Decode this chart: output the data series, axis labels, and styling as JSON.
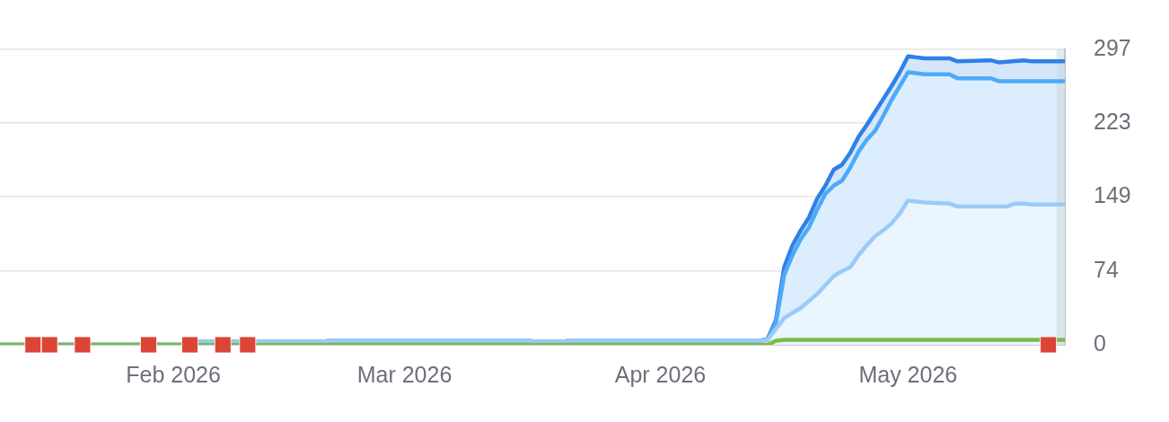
{
  "chart_data": {
    "type": "area",
    "series": [
      {
        "color": "#2f80e8",
        "x": [
          "2026-01-11",
          "2026-02-03",
          "2026-02-04",
          "2026-02-19",
          "2026-02-20",
          "2026-03-16",
          "2026-03-17",
          "2026-03-20",
          "2026-03-21",
          "2026-04-13",
          "2026-04-14",
          "2026-04-15",
          "2026-04-16",
          "2026-04-17",
          "2026-04-18",
          "2026-04-19",
          "2026-04-20",
          "2026-04-21",
          "2026-04-22",
          "2026-04-23",
          "2026-04-24",
          "2026-04-25",
          "2026-04-26",
          "2026-04-27",
          "2026-04-28",
          "2026-04-29",
          "2026-04-30",
          "2026-05-01",
          "2026-05-02",
          "2026-05-03",
          "2026-05-06",
          "2026-05-07",
          "2026-05-11",
          "2026-05-12",
          "2026-05-15",
          "2026-05-16",
          "2026-05-20"
        ],
        "values": [
          0,
          0,
          3,
          3,
          4,
          4,
          3,
          3,
          4,
          4,
          6,
          25,
          78,
          100,
          115,
          128,
          147,
          160,
          176,
          181,
          193,
          209,
          221,
          234,
          247,
          260,
          274,
          290,
          289,
          288,
          288,
          285,
          286,
          284,
          286,
          285,
          285
        ]
      },
      {
        "color": "#4eaaf8",
        "x": [
          "2026-01-11",
          "2026-02-03",
          "2026-02-04",
          "2026-02-19",
          "2026-02-20",
          "2026-03-16",
          "2026-03-17",
          "2026-03-20",
          "2026-03-21",
          "2026-04-13",
          "2026-04-14",
          "2026-04-15",
          "2026-04-16",
          "2026-04-17",
          "2026-04-18",
          "2026-04-19",
          "2026-04-20",
          "2026-04-21",
          "2026-04-22",
          "2026-04-23",
          "2026-04-24",
          "2026-04-25",
          "2026-04-26",
          "2026-04-27",
          "2026-04-28",
          "2026-04-29",
          "2026-04-30",
          "2026-05-01",
          "2026-05-02",
          "2026-05-03",
          "2026-05-06",
          "2026-05-07",
          "2026-05-11",
          "2026-05-12",
          "2026-05-20"
        ],
        "values": [
          0,
          0,
          3,
          3,
          4,
          4,
          3,
          3,
          4,
          4,
          5,
          22,
          70,
          90,
          106,
          118,
          136,
          152,
          160,
          165,
          178,
          194,
          206,
          215,
          230,
          246,
          260,
          274,
          273,
          272,
          272,
          268,
          268,
          265,
          265
        ]
      },
      {
        "color": "#9acbf8",
        "x": [
          "2026-01-11",
          "2026-02-03",
          "2026-02-04",
          "2026-02-19",
          "2026-02-20",
          "2026-03-16",
          "2026-03-17",
          "2026-03-20",
          "2026-03-21",
          "2026-04-13",
          "2026-04-14",
          "2026-04-15",
          "2026-04-16",
          "2026-04-17",
          "2026-04-18",
          "2026-04-19",
          "2026-04-20",
          "2026-04-21",
          "2026-04-22",
          "2026-04-23",
          "2026-04-24",
          "2026-04-25",
          "2026-04-26",
          "2026-04-27",
          "2026-04-28",
          "2026-04-29",
          "2026-04-30",
          "2026-05-01",
          "2026-05-02",
          "2026-05-03",
          "2026-05-06",
          "2026-05-07",
          "2026-05-13",
          "2026-05-14",
          "2026-05-15",
          "2026-05-16",
          "2026-05-20"
        ],
        "values": [
          0,
          0,
          3,
          3,
          4,
          4,
          3,
          3,
          4,
          4,
          5,
          16,
          27,
          32,
          37,
          44,
          51,
          60,
          69,
          74,
          78,
          90,
          100,
          109,
          115,
          122,
          132,
          145,
          144,
          143,
          142,
          139,
          139,
          142,
          142,
          141,
          141
        ]
      },
      {
        "type": "line",
        "color": "#7cbb47",
        "x": [
          "2026-01-11",
          "2026-04-14",
          "2026-04-15",
          "2026-04-16",
          "2026-05-20"
        ],
        "values": [
          0,
          0,
          4,
          5,
          5
        ]
      },
      {
        "type": "scatter",
        "color": "#dc4436",
        "marker": "square",
        "x": [
          "2026-01-15",
          "2026-01-17",
          "2026-01-21",
          "2026-01-29",
          "2026-02-03",
          "2026-02-07",
          "2026-02-10",
          "2026-05-18"
        ],
        "values": [
          0,
          0,
          0,
          0,
          0,
          0,
          0,
          0
        ]
      }
    ],
    "xlim": [
      "2026-01-11",
      "2026-05-20"
    ],
    "xticks": [
      {
        "value": "2026-02-01",
        "label": "Feb 2026"
      },
      {
        "value": "2026-03-01",
        "label": "Mar 2026"
      },
      {
        "value": "2026-04-01",
        "label": "Apr 2026"
      },
      {
        "value": "2026-05-01",
        "label": "May 2026"
      }
    ],
    "ylim": [
      0,
      297
    ],
    "yticks": [
      0,
      74,
      149,
      223,
      297
    ],
    "grid": "y",
    "bands": [
      {
        "axis": "x",
        "from": "2026-05-19",
        "to": "2026-05-20",
        "color": "#e3e9ec"
      }
    ]
  }
}
